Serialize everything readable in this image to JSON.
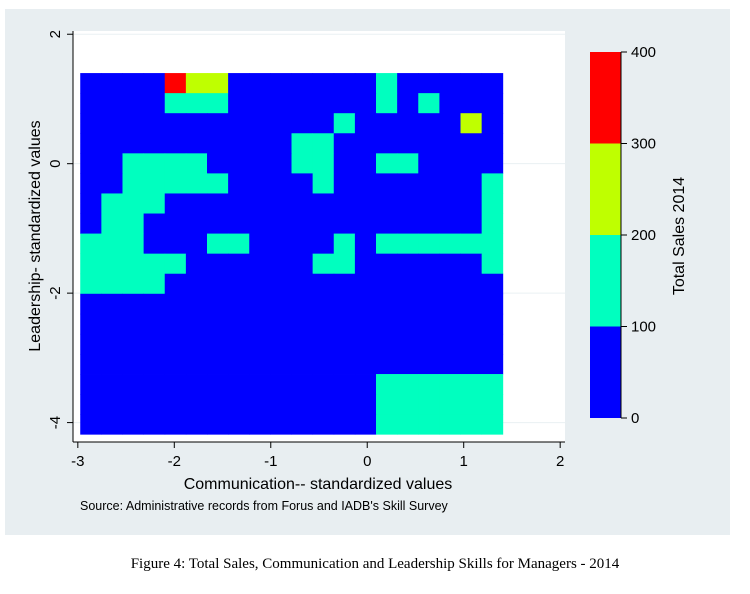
{
  "chart_data": {
    "type": "heatmap",
    "xlabel": "Communication-- standardized values",
    "ylabel": "Leadership- standardized values",
    "xlim": [
      -3.05,
      2.05
    ],
    "ylim": [
      -4.3,
      2.05
    ],
    "xticks": [
      -3,
      -2,
      -1,
      0,
      1,
      2
    ],
    "yticks": [
      -4,
      -2,
      0,
      2
    ],
    "xtick_labels": [
      "-3",
      "-2",
      "-1",
      "0",
      "1",
      "2"
    ],
    "ytick_labels": [
      "-4",
      "-2",
      "0",
      "2"
    ],
    "grid": true,
    "x_edges": [
      -2.975,
      -2.756,
      -2.537,
      -2.318,
      -2.099,
      -1.88,
      -1.661,
      -1.442,
      -1.223,
      -1.004,
      -0.785,
      -0.566,
      -0.347,
      -0.128,
      0.091,
      0.31,
      0.529,
      0.748,
      0.967,
      1.186,
      1.405
    ],
    "y_edges": [
      1.4,
      1.09,
      0.78,
      0.47,
      0.16,
      -0.15,
      -0.46,
      -0.77,
      -1.08,
      -1.39,
      -1.7,
      -2.01,
      -2.32,
      -2.63,
      -2.94,
      -3.25,
      -3.56,
      -3.87,
      -4.18
    ],
    "value_grid": [
      "00003220000000100000",
      "00001110000000101000",
      "00000000000010000020",
      "00000000001100000000",
      "00111100001100110000",
      "00111110000100000001",
      "01110000000000000001",
      "01100000000000000001",
      "11100011000010111111",
      "11111000000110000001",
      "11110000000000000000",
      "00000000000000000000",
      "00000000000000000000",
      "00000000000000000000",
      "00000000000000000000",
      "00000000000000111111",
      "00000000000000111111",
      "00000000000000111111"
    ],
    "value_grid_legend": {
      "0": "0-100",
      "1": "100-200",
      "2": "200-300",
      "3": "300-400"
    },
    "colorbar": {
      "label": "Total Sales 2014",
      "range": [
        0,
        400
      ],
      "ticks": [
        0,
        100,
        200,
        300,
        400
      ],
      "tick_labels": [
        "0",
        "100",
        "200",
        "300",
        "400"
      ],
      "bins": [
        {
          "from": 0,
          "to": 100,
          "color": "#0000ff"
        },
        {
          "from": 100,
          "to": 200,
          "color": "#00ffbf"
        },
        {
          "from": 200,
          "to": 300,
          "color": "#bfff00"
        },
        {
          "from": 300,
          "to": 400,
          "color": "#ff0000"
        }
      ]
    },
    "note": "Source: Administrative records from Forus and IADB's Skill Survey",
    "caption": "Figure 4: Total Sales, Communication and Leadership Skills for Managers - 2014"
  }
}
